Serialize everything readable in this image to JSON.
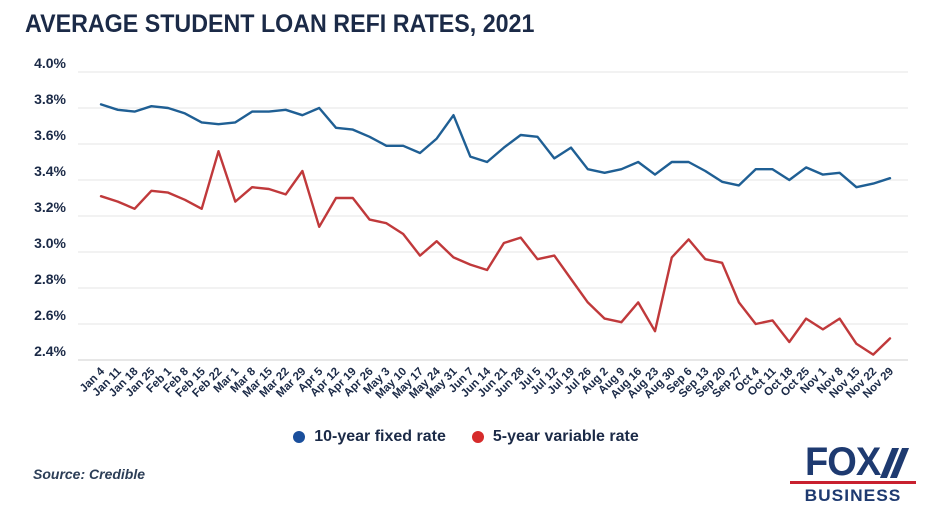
{
  "title": "AVERAGE STUDENT LOAN REFI RATES, 2021",
  "source": "Source: Credible",
  "logo": {
    "line1": "FOX",
    "line2": "BUSINESS"
  },
  "legend": {
    "items": [
      {
        "label": "10-year fixed rate",
        "color": "#1a4f9c"
      },
      {
        "label": "5-year variable rate",
        "color": "#d62b2b"
      }
    ]
  },
  "colors": {
    "text_navy": "#1b2a47",
    "blue_line": "#1f5f94",
    "red_line": "#c0393b",
    "gridline": "#e4e4e4",
    "axis_line": "#cfcfcf"
  },
  "chart_data": {
    "type": "line",
    "title": "AVERAGE STUDENT LOAN REFI RATES, 2021",
    "xlabel": "",
    "ylabel": "",
    "grid": true,
    "legend_position": "bottom",
    "ylim": [
      2.4,
      4.0
    ],
    "yticks": [
      4.0,
      3.8,
      3.6,
      3.4,
      3.2,
      3.0,
      2.8,
      2.6,
      2.4
    ],
    "ytick_format": "percent",
    "x": [
      "Jan 4",
      "Jan 11",
      "Jan 18",
      "Jan 25",
      "Feb 1",
      "Feb 8",
      "Feb 15",
      "Feb 22",
      "Mar 1",
      "Mar 8",
      "Mar 15",
      "Mar 22",
      "Mar 29",
      "Apr 5",
      "Apr 12",
      "Apr 19",
      "Apr 26",
      "May 3",
      "May 10",
      "May 17",
      "May 24",
      "May 31",
      "Jun 7",
      "Jun 14",
      "Jun 21",
      "Jun 28",
      "Jul 5",
      "Jul 12",
      "Jul 19",
      "Jul 26",
      "Aug 2",
      "Aug 9",
      "Aug 16",
      "Aug 23",
      "Aug 30",
      "Sep 6",
      "Sep 13",
      "Sep 20",
      "Sep 27",
      "Oct 4",
      "Oct 11",
      "Oct 18",
      "Oct 25",
      "Nov 1",
      "Nov 8",
      "Nov 15",
      "Nov 22",
      "Nov 29"
    ],
    "series": [
      {
        "name": "10-year fixed rate",
        "color": "#1f5f94",
        "values": [
          3.82,
          3.79,
          3.78,
          3.81,
          3.8,
          3.77,
          3.72,
          3.71,
          3.72,
          3.78,
          3.78,
          3.79,
          3.76,
          3.8,
          3.69,
          3.68,
          3.64,
          3.59,
          3.59,
          3.55,
          3.63,
          3.76,
          3.53,
          3.5,
          3.58,
          3.65,
          3.64,
          3.52,
          3.58,
          3.46,
          3.44,
          3.46,
          3.5,
          3.43,
          3.5,
          3.5,
          3.45,
          3.39,
          3.37,
          3.46,
          3.46,
          3.4,
          3.47,
          3.43,
          3.44,
          3.36,
          3.38,
          3.41
        ]
      },
      {
        "name": "5-year variable rate",
        "color": "#c0393b",
        "values": [
          3.31,
          3.28,
          3.24,
          3.34,
          3.33,
          3.29,
          3.24,
          3.56,
          3.28,
          3.36,
          3.35,
          3.32,
          3.45,
          3.14,
          3.3,
          3.3,
          3.18,
          3.16,
          3.1,
          2.98,
          3.06,
          2.97,
          2.93,
          2.9,
          3.05,
          3.08,
          2.96,
          2.98,
          2.85,
          2.72,
          2.63,
          2.61,
          2.72,
          2.56,
          2.97,
          3.07,
          2.96,
          2.94,
          2.72,
          2.6,
          2.62,
          2.5,
          2.63,
          2.57,
          2.63,
          2.49,
          2.43,
          2.52
        ]
      }
    ]
  }
}
